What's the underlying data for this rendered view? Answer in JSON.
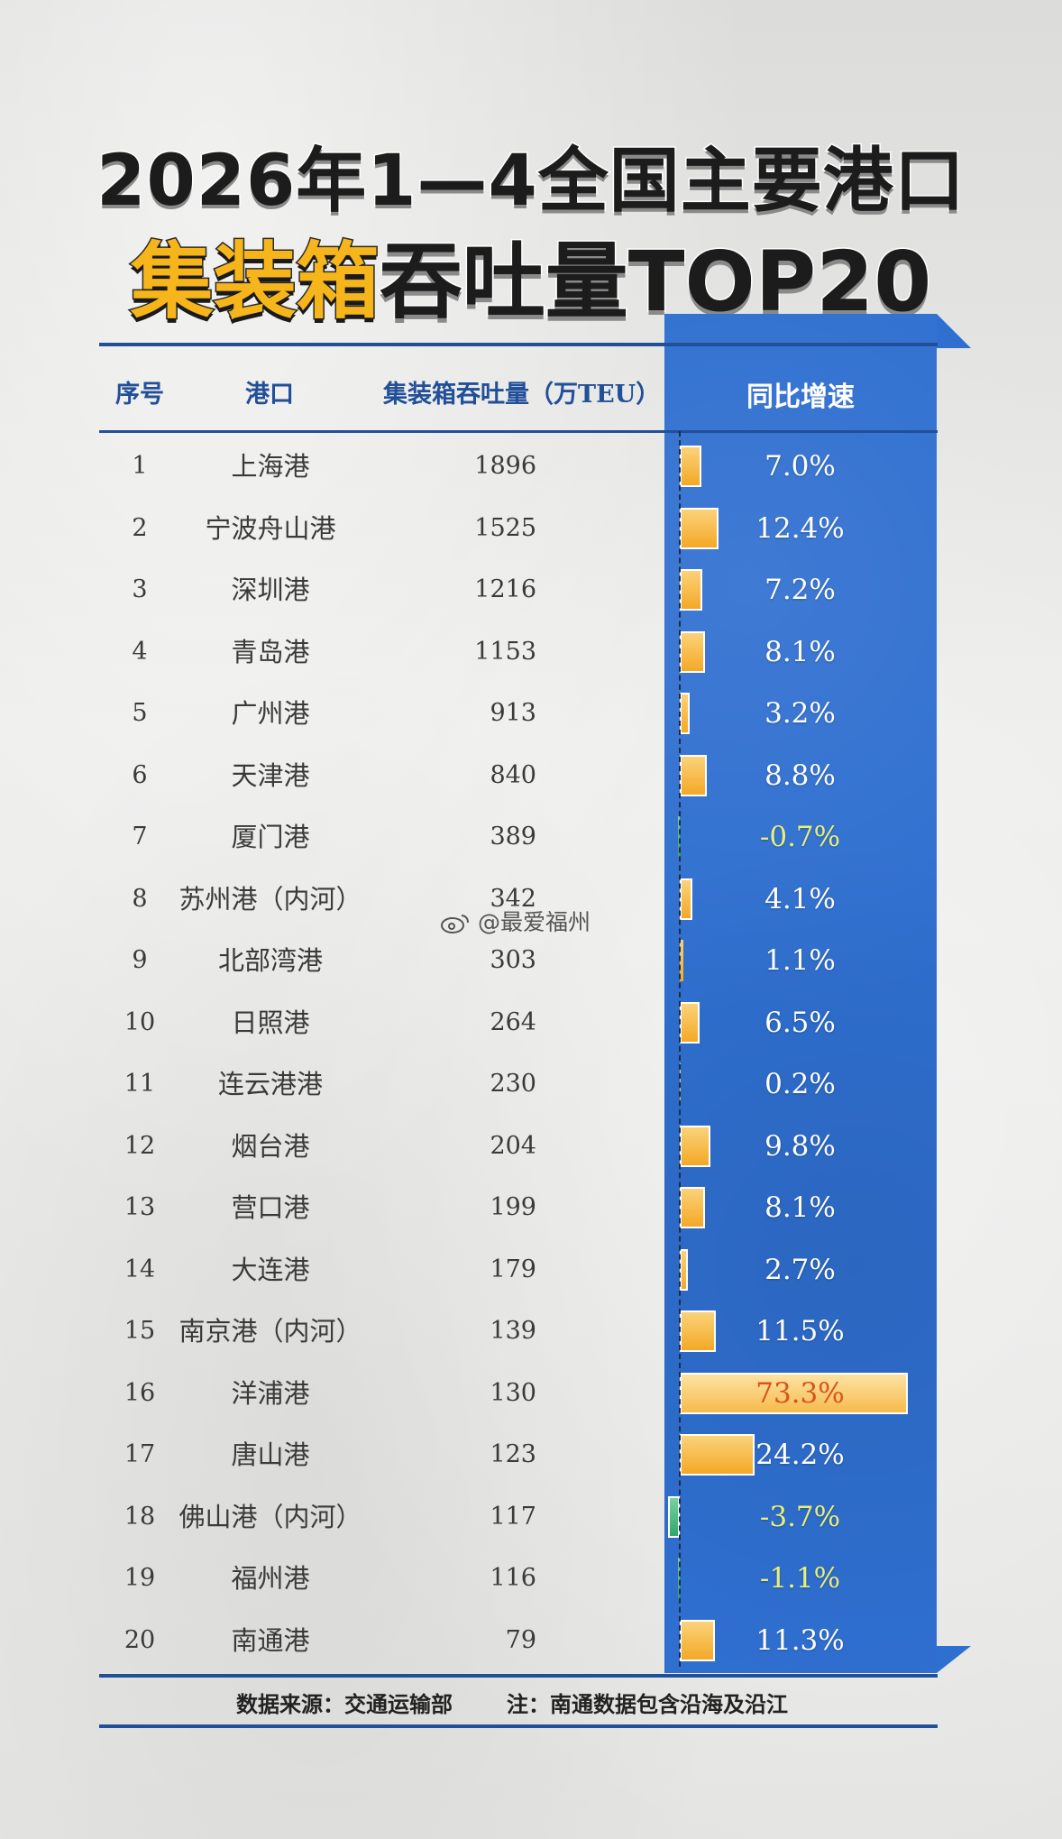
{
  "title_line1": "2026年1—4全国主要港口",
  "title_line2_highlight": "集装箱",
  "title_line2_rest": "吞吐量TOP20",
  "headers": {
    "rank": "序号",
    "port": "港口",
    "volume": "集装箱吞吐量（万TEU）",
    "growth": "同比增速"
  },
  "colors": {
    "panel_blue": "#2f6fd0",
    "bar_orange": "#f3a926",
    "bar_green": "#2ea86a",
    "negative_text": "#e8f07a",
    "max_text": "#d9531e",
    "header_blue": "#214f98"
  },
  "chart_data": {
    "type": "table",
    "columns": [
      "序号",
      "港口",
      "集装箱吞吐量（万TEU）",
      "同比增速"
    ],
    "rows": [
      {
        "rank": "1",
        "port": "上海港",
        "volume": "1896",
        "growth": "7.0%",
        "growth_value": 7.0
      },
      {
        "rank": "2",
        "port": "宁波舟山港",
        "volume": "1525",
        "growth": "12.4%",
        "growth_value": 12.4
      },
      {
        "rank": "3",
        "port": "深圳港",
        "volume": "1216",
        "growth": "7.2%",
        "growth_value": 7.2
      },
      {
        "rank": "4",
        "port": "青岛港",
        "volume": "1153",
        "growth": "8.1%",
        "growth_value": 8.1
      },
      {
        "rank": "5",
        "port": "广州港",
        "volume": "913",
        "growth": "3.2%",
        "growth_value": 3.2
      },
      {
        "rank": "6",
        "port": "天津港",
        "volume": "840",
        "growth": "8.8%",
        "growth_value": 8.8
      },
      {
        "rank": "7",
        "port": "厦门港",
        "volume": "389",
        "growth": "-0.7%",
        "growth_value": -0.7
      },
      {
        "rank": "8",
        "port": "苏州港（内河）",
        "volume": "342",
        "growth": "4.1%",
        "growth_value": 4.1
      },
      {
        "rank": "9",
        "port": "北部湾港",
        "volume": "303",
        "growth": "1.1%",
        "growth_value": 1.1
      },
      {
        "rank": "10",
        "port": "日照港",
        "volume": "264",
        "growth": "6.5%",
        "growth_value": 6.5
      },
      {
        "rank": "11",
        "port": "连云港港",
        "volume": "230",
        "growth": "0.2%",
        "growth_value": 0.2
      },
      {
        "rank": "12",
        "port": "烟台港",
        "volume": "204",
        "growth": "9.8%",
        "growth_value": 9.8
      },
      {
        "rank": "13",
        "port": "营口港",
        "volume": "199",
        "growth": "8.1%",
        "growth_value": 8.1
      },
      {
        "rank": "14",
        "port": "大连港",
        "volume": "179",
        "growth": "2.7%",
        "growth_value": 2.7
      },
      {
        "rank": "15",
        "port": "南京港（内河）",
        "volume": "139",
        "growth": "11.5%",
        "growth_value": 11.5
      },
      {
        "rank": "16",
        "port": "洋浦港",
        "volume": "130",
        "growth": "73.3%",
        "growth_value": 73.3
      },
      {
        "rank": "17",
        "port": "唐山港",
        "volume": "123",
        "growth": "24.2%",
        "growth_value": 24.2
      },
      {
        "rank": "18",
        "port": "佛山港（内河）",
        "volume": "117",
        "growth": "-3.7%",
        "growth_value": -3.7
      },
      {
        "rank": "19",
        "port": "福州港",
        "volume": "116",
        "growth": "-1.1%",
        "growth_value": -1.1
      },
      {
        "rank": "20",
        "port": "南通港",
        "volume": "79",
        "growth": "11.3%",
        "growth_value": 11.3
      }
    ]
  },
  "footer": {
    "source": "数据来源：交通运输部",
    "note": "注：南通数据包含沿海及沿江"
  },
  "watermark": "@最爱福州"
}
